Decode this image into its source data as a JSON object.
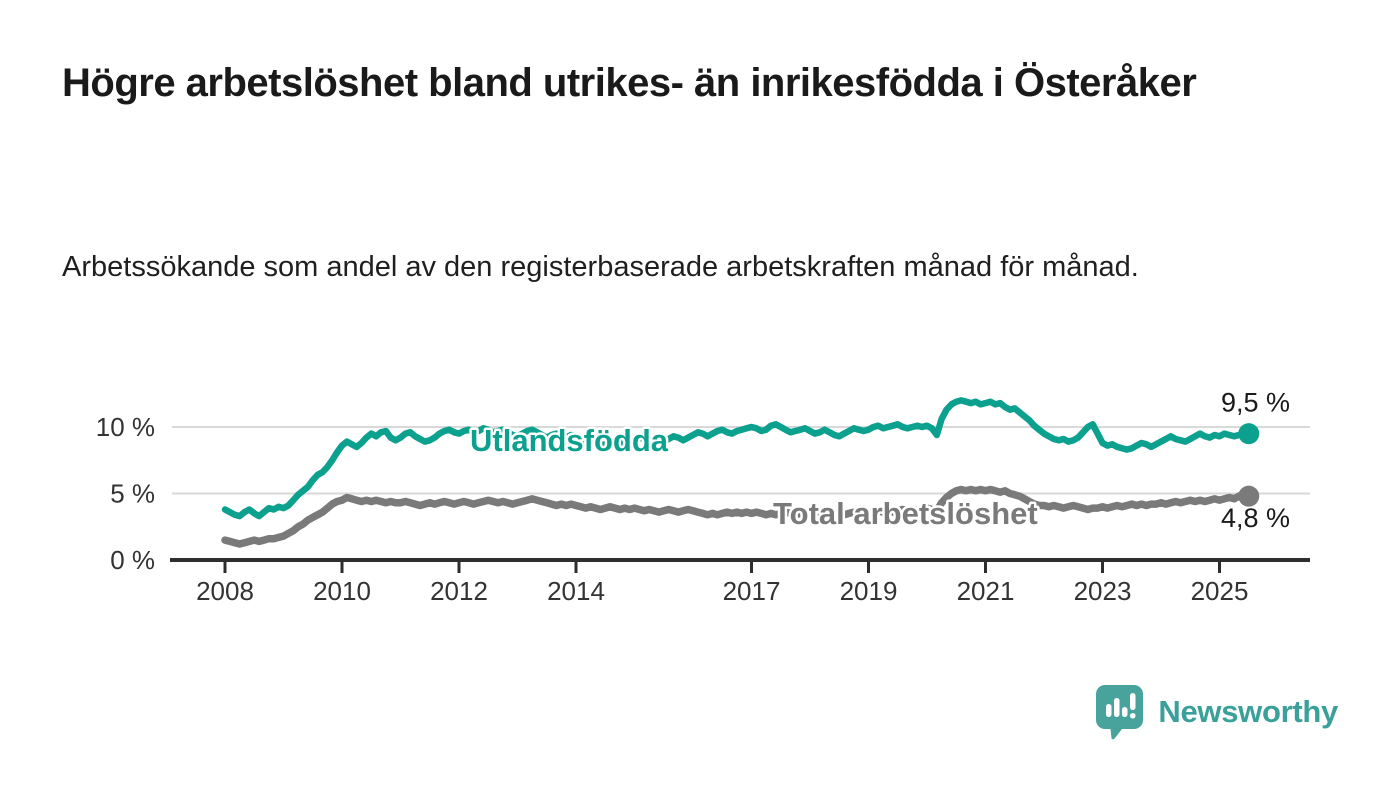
{
  "header": {
    "title": "Högre arbetslöshet bland utrikes- än inrikesfödda i Österåker",
    "subtitle": "Arbetssökande som andel av den registerbaserade arbetskraften månad för månad."
  },
  "chart_data": {
    "type": "line",
    "unit": "%",
    "frequency": "monthly",
    "start": "2008-01",
    "x_ticks": [
      2008,
      2010,
      2012,
      2014,
      2017,
      2019,
      2021,
      2023,
      2025
    ],
    "x_tick_labels": [
      "2008",
      "2010",
      "2012",
      "2014",
      "2017",
      "2019",
      "2021",
      "2023",
      "2025"
    ],
    "y_ticks": [
      0,
      5,
      10
    ],
    "y_tick_labels": [
      "0 %",
      "5 %",
      "10 %"
    ],
    "ylim": [
      0,
      13
    ],
    "grid": "horizontal",
    "legend_position": "inline-labels",
    "colors": {
      "grid": "#d9d9d9",
      "axis": "#2e2e2e",
      "tick_label": "#333333",
      "value_label": "#1a1a1a"
    },
    "series": [
      {
        "name": "Utlandsfödda",
        "color": "#0ca08e",
        "end_label": "9,5 %",
        "end_value": 9.5,
        "values": [
          3.8,
          3.6,
          3.4,
          3.3,
          3.6,
          3.8,
          3.5,
          3.3,
          3.6,
          3.9,
          3.8,
          4.0,
          3.9,
          4.1,
          4.5,
          4.9,
          5.2,
          5.5,
          6.0,
          6.4,
          6.6,
          7.0,
          7.5,
          8.1,
          8.6,
          8.9,
          8.7,
          8.5,
          8.8,
          9.2,
          9.5,
          9.3,
          9.6,
          9.7,
          9.2,
          9.0,
          9.2,
          9.5,
          9.6,
          9.3,
          9.1,
          8.9,
          9.0,
          9.2,
          9.5,
          9.7,
          9.8,
          9.6,
          9.5,
          9.7,
          9.8,
          9.6,
          9.7,
          9.9,
          9.8,
          9.6,
          9.7,
          9.8,
          9.6,
          9.4,
          9.3,
          9.5,
          9.7,
          9.8,
          9.6,
          9.4,
          9.2,
          9.4,
          9.5,
          9.3,
          9.2,
          9.4,
          9.3,
          9.1,
          8.9,
          8.7,
          8.8,
          8.6,
          8.7,
          8.9,
          9.0,
          8.8,
          8.7,
          8.9,
          9.0,
          9.2,
          9.1,
          8.9,
          8.8,
          8.7,
          8.9,
          9.1,
          9.3,
          9.2,
          9.0,
          9.2,
          9.4,
          9.6,
          9.5,
          9.3,
          9.5,
          9.7,
          9.8,
          9.6,
          9.5,
          9.7,
          9.8,
          9.9,
          10.0,
          9.9,
          9.7,
          9.8,
          10.1,
          10.2,
          10.0,
          9.8,
          9.6,
          9.7,
          9.8,
          9.9,
          9.7,
          9.5,
          9.6,
          9.8,
          9.6,
          9.4,
          9.3,
          9.5,
          9.7,
          9.9,
          9.8,
          9.7,
          9.8,
          10.0,
          10.1,
          9.9,
          10.0,
          10.1,
          10.2,
          10.0,
          9.9,
          10.0,
          10.1,
          10.0,
          10.1,
          9.9,
          9.4,
          10.6,
          11.3,
          11.7,
          11.9,
          12.0,
          11.9,
          11.8,
          11.9,
          11.7,
          11.8,
          11.9,
          11.7,
          11.8,
          11.5,
          11.3,
          11.4,
          11.1,
          10.8,
          10.5,
          10.1,
          9.8,
          9.5,
          9.3,
          9.1,
          9.0,
          9.1,
          8.9,
          9.0,
          9.2,
          9.6,
          10.0,
          10.2,
          9.5,
          8.8,
          8.6,
          8.7,
          8.5,
          8.4,
          8.3,
          8.4,
          8.6,
          8.8,
          8.7,
          8.5,
          8.7,
          8.9,
          9.1,
          9.3,
          9.1,
          9.0,
          8.9,
          9.1,
          9.3,
          9.5,
          9.3,
          9.2,
          9.4,
          9.3,
          9.5,
          9.4,
          9.3,
          9.4,
          9.5,
          9.5
        ]
      },
      {
        "name": "Total arbetslöshet",
        "color": "#7a7a7a",
        "end_label": "4,8 %",
        "end_value": 4.8,
        "values": [
          1.5,
          1.4,
          1.3,
          1.2,
          1.3,
          1.4,
          1.5,
          1.4,
          1.5,
          1.6,
          1.6,
          1.7,
          1.8,
          2.0,
          2.2,
          2.5,
          2.7,
          3.0,
          3.2,
          3.4,
          3.6,
          3.9,
          4.2,
          4.4,
          4.5,
          4.7,
          4.6,
          4.5,
          4.4,
          4.5,
          4.4,
          4.5,
          4.4,
          4.3,
          4.4,
          4.3,
          4.3,
          4.4,
          4.3,
          4.2,
          4.1,
          4.2,
          4.3,
          4.2,
          4.3,
          4.4,
          4.3,
          4.2,
          4.3,
          4.4,
          4.3,
          4.2,
          4.3,
          4.4,
          4.5,
          4.4,
          4.3,
          4.4,
          4.3,
          4.2,
          4.3,
          4.4,
          4.5,
          4.6,
          4.5,
          4.4,
          4.3,
          4.2,
          4.1,
          4.2,
          4.1,
          4.2,
          4.1,
          4.0,
          3.9,
          4.0,
          3.9,
          3.8,
          3.9,
          4.0,
          3.9,
          3.8,
          3.9,
          3.8,
          3.9,
          3.8,
          3.7,
          3.8,
          3.7,
          3.6,
          3.7,
          3.8,
          3.7,
          3.6,
          3.7,
          3.8,
          3.7,
          3.6,
          3.5,
          3.4,
          3.5,
          3.4,
          3.5,
          3.6,
          3.5,
          3.6,
          3.5,
          3.6,
          3.5,
          3.6,
          3.5,
          3.4,
          3.5,
          3.4,
          3.5,
          3.6,
          3.5,
          3.4,
          3.5,
          3.6,
          3.5,
          3.4,
          3.5,
          3.6,
          3.5,
          3.4,
          3.3,
          3.4,
          3.5,
          3.6,
          3.5,
          3.6,
          3.5,
          3.6,
          3.7,
          3.6,
          3.7,
          3.6,
          3.7,
          3.8,
          3.7,
          3.8,
          3.7,
          3.8,
          3.9,
          3.8,
          3.7,
          4.3,
          4.7,
          5.0,
          5.2,
          5.3,
          5.2,
          5.3,
          5.2,
          5.3,
          5.2,
          5.3,
          5.2,
          5.1,
          5.2,
          5.0,
          4.9,
          4.8,
          4.6,
          4.4,
          4.2,
          4.1,
          4.1,
          4.0,
          4.1,
          4.0,
          3.9,
          4.0,
          4.1,
          4.0,
          3.9,
          3.8,
          3.9,
          3.9,
          4.0,
          3.9,
          4.0,
          4.1,
          4.0,
          4.1,
          4.2,
          4.1,
          4.2,
          4.1,
          4.2,
          4.2,
          4.3,
          4.2,
          4.3,
          4.4,
          4.3,
          4.4,
          4.5,
          4.4,
          4.5,
          4.4,
          4.5,
          4.6,
          4.5,
          4.6,
          4.7,
          4.6,
          4.8,
          5.0,
          4.8
        ]
      }
    ]
  },
  "footer": {
    "brand": "Newsworthy",
    "logo_icon": "newsworthy-speech-bubble-bars-icon",
    "logo_color": "#48a39d",
    "wordmark_color": "#3aa09a"
  }
}
